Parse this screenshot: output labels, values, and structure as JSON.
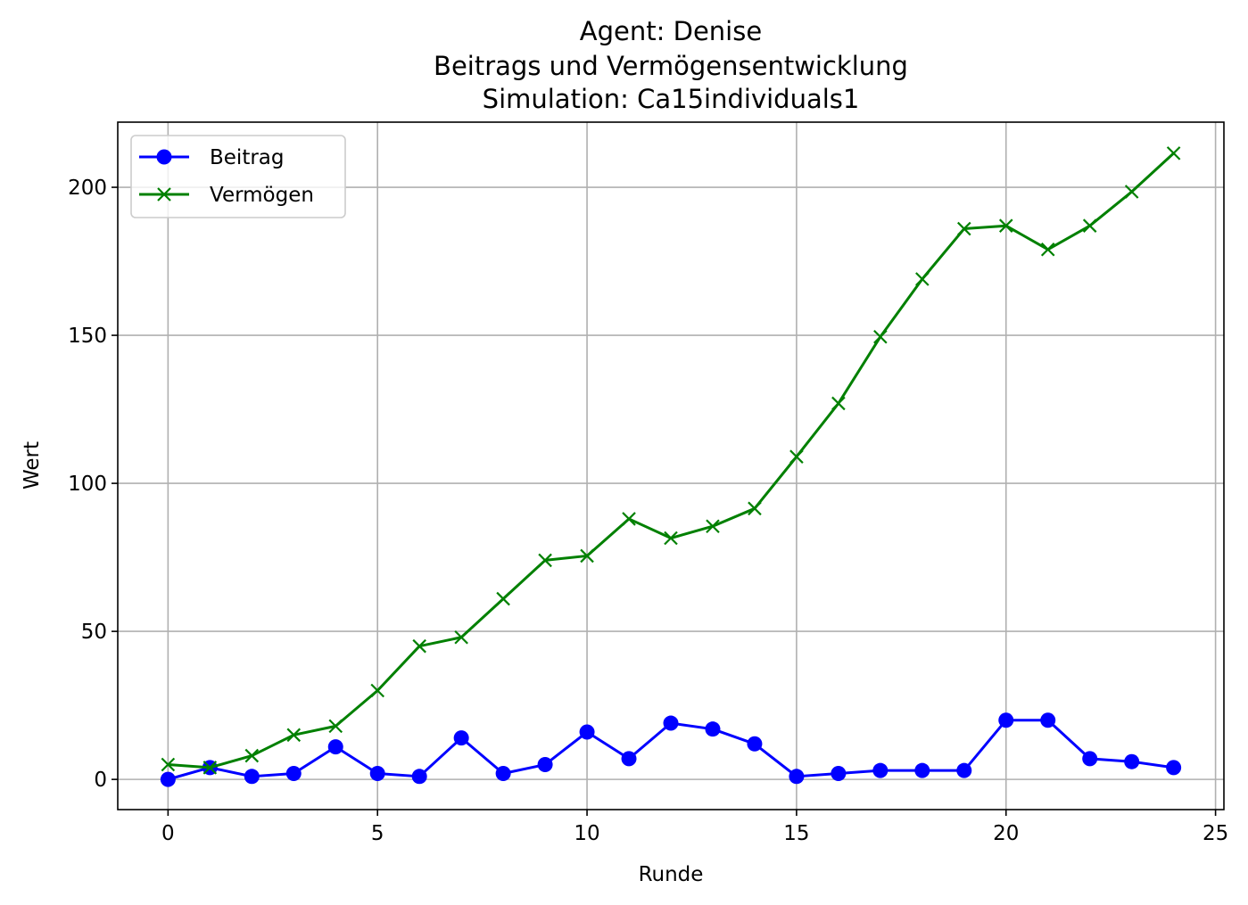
{
  "chart_data": {
    "type": "line",
    "title_lines": [
      "Agent: Denise",
      "Beitrags und Vermögensentwicklung",
      "Simulation: Ca15individuals1"
    ],
    "xlabel": "Runde",
    "ylabel": "Wert",
    "xlim": [
      -1.2,
      25.2
    ],
    "ylim": [
      -10.2,
      222
    ],
    "xticks": [
      0,
      5,
      10,
      15,
      20,
      25
    ],
    "yticks": [
      0,
      50,
      100,
      150,
      200
    ],
    "grid": true,
    "legend_position": "upper-left",
    "x": [
      0,
      1,
      2,
      3,
      4,
      5,
      6,
      7,
      8,
      9,
      10,
      11,
      12,
      13,
      14,
      15,
      16,
      17,
      18,
      19,
      20,
      21,
      22,
      23,
      24
    ],
    "series": [
      {
        "name": "Beitrag",
        "color": "#0000ff",
        "marker": "circle",
        "values": [
          0,
          4,
          1,
          2,
          11,
          2,
          1,
          14,
          2,
          5,
          16,
          7,
          19,
          17,
          12,
          1,
          2,
          3,
          3,
          3,
          20,
          20,
          7,
          6,
          4
        ]
      },
      {
        "name": "Vermögen",
        "color": "#008000",
        "marker": "x",
        "values": [
          5,
          4,
          8,
          15,
          18,
          30,
          45,
          48,
          61,
          74,
          75.5,
          88,
          81.5,
          85.5,
          91.5,
          109,
          127,
          149.5,
          169,
          186,
          187,
          179,
          187,
          198.5,
          211.5
        ]
      }
    ]
  }
}
